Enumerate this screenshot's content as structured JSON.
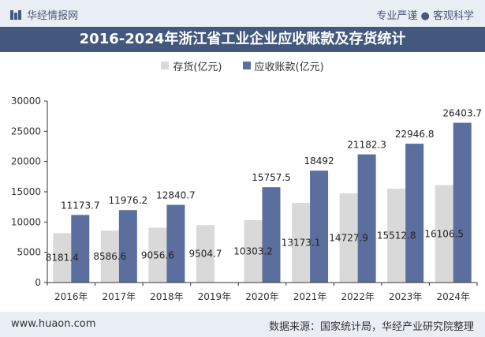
{
  "header": {
    "brand": "华经情报网",
    "slogan": "专业严谨 ● 客观科学"
  },
  "title": "2016-2024年浙江省工业企业应收账款及存货统计",
  "footer": {
    "url": "www.huaon.com",
    "source": "数据来源：国家统计局，华经产业研究院整理"
  },
  "colors": {
    "inventory": "#d9d9d9",
    "receivables": "#5b6e9e",
    "title_bg": "#43587e"
  },
  "chart_data": {
    "type": "bar",
    "title": "2016-2024年浙江省工业企业应收账款及存货统计",
    "xlabel": "",
    "ylabel": "",
    "categories": [
      "2016年",
      "2017年",
      "2018年",
      "2019年",
      "2020年",
      "2021年",
      "2022年",
      "2023年",
      "2024年"
    ],
    "series": [
      {
        "name": "存货(亿元)",
        "values": [
          8181.4,
          8586.6,
          9056.6,
          9504.7,
          10303.2,
          13173.1,
          14727.9,
          15512.8,
          16106.5
        ],
        "labels": [
          "8181.4",
          "8586.6",
          "9056.6",
          "9504.7",
          "10303.2",
          "13173.1",
          "14727.9",
          "15512.8",
          "16106.5"
        ]
      },
      {
        "name": "应收账款(亿元)",
        "values": [
          11173.7,
          11976.2,
          12840.7,
          null,
          15757.5,
          18492,
          21182.3,
          22946.8,
          26403.7
        ],
        "labels": [
          "11173.7",
          "11976.2",
          "12840.7",
          "",
          "15757.5",
          "18492",
          "21182.3",
          "22946.8",
          "26403.7"
        ]
      }
    ],
    "ylim": [
      0,
      30000
    ],
    "yticks": [
      0,
      5000,
      10000,
      15000,
      20000,
      25000,
      30000
    ],
    "grid": false,
    "legend_position": "top-center"
  }
}
